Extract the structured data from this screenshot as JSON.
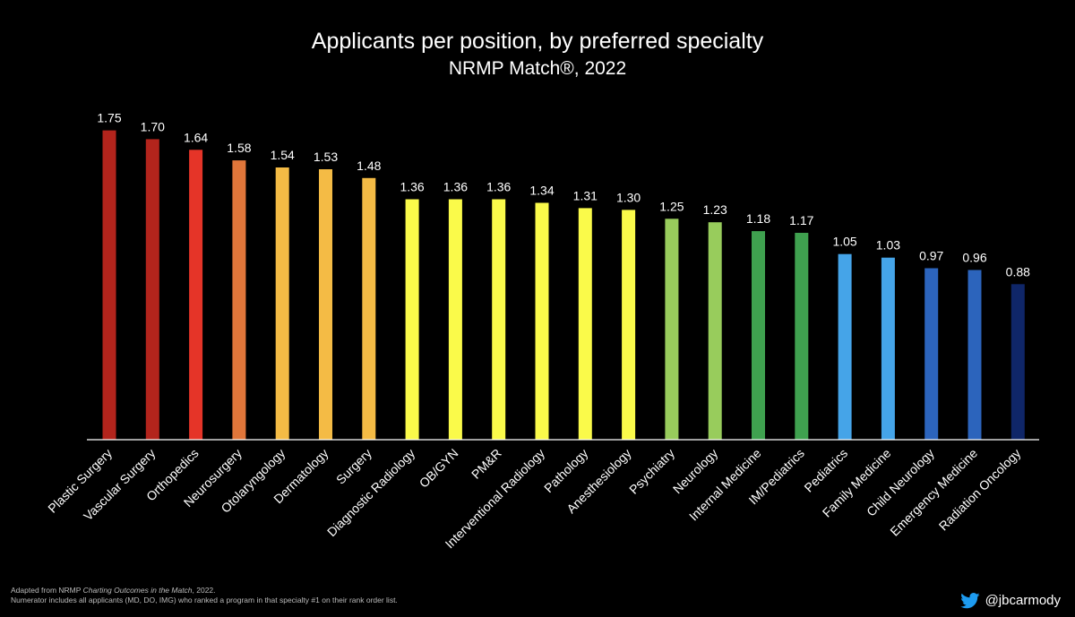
{
  "chart_data": {
    "type": "bar",
    "title": "Applicants per position, by preferred specialty",
    "subtitle": "NRMP Match®, 2022",
    "xlabel": "",
    "ylabel": "",
    "ylim": [
      0,
      1.85
    ],
    "grid": false,
    "categories": [
      "Plastic Surgery",
      "Vascular Surgery",
      "Orthopedics",
      "Neurosurgery",
      "Otolaryngology",
      "Dermatology",
      "Surgery",
      "Diagnostic Radiology",
      "OB/GYN",
      "PM&R",
      "Interventional Radiology",
      "Pathology",
      "Anesthesiology",
      "Psychiatry",
      "Neurology",
      "Internal Medicine",
      "IM/Pediatrics",
      "Pediatrics",
      "Family Medicine",
      "Child Neurology",
      "Emergency Medicine",
      "Radiation Oncology"
    ],
    "values": [
      1.75,
      1.7,
      1.64,
      1.58,
      1.54,
      1.53,
      1.48,
      1.36,
      1.36,
      1.36,
      1.34,
      1.31,
      1.3,
      1.25,
      1.23,
      1.18,
      1.17,
      1.05,
      1.03,
      0.97,
      0.96,
      0.88
    ],
    "value_labels": [
      "1.75",
      "1.70",
      "1.64",
      "1.58",
      "1.54",
      "1.53",
      "1.48",
      "1.36",
      "1.36",
      "1.36",
      "1.34",
      "1.31",
      "1.30",
      "1.25",
      "1.23",
      "1.18",
      "1.17",
      "1.05",
      "1.03",
      "0.97",
      "0.96",
      "0.88"
    ],
    "colors": [
      "#b3241c",
      "#b3241c",
      "#e53428",
      "#e0763a",
      "#f4bb45",
      "#f4bb45",
      "#f4bb45",
      "#fafa4a",
      "#fafa4a",
      "#fafa4a",
      "#fafa4a",
      "#fafa4a",
      "#fafa4a",
      "#98cc5c",
      "#98cc5c",
      "#3fa14f",
      "#3fa14f",
      "#45a4e8",
      "#45a4e8",
      "#2c64bc",
      "#2c64bc",
      "#0f2668"
    ]
  },
  "footnote": {
    "line1_prefix": "Adapted from NRMP ",
    "line1_italic": "Charting Outcomes in the Match",
    "line1_suffix": ", 2022.",
    "line2": "Numerator includes all applicants (MD, DO, IMG) who ranked a program in that specialty #1 on their rank order list."
  },
  "credit": {
    "handle": "@jbcarmody",
    "icon": "twitter-bird-icon",
    "icon_color": "#1d9bf0"
  }
}
